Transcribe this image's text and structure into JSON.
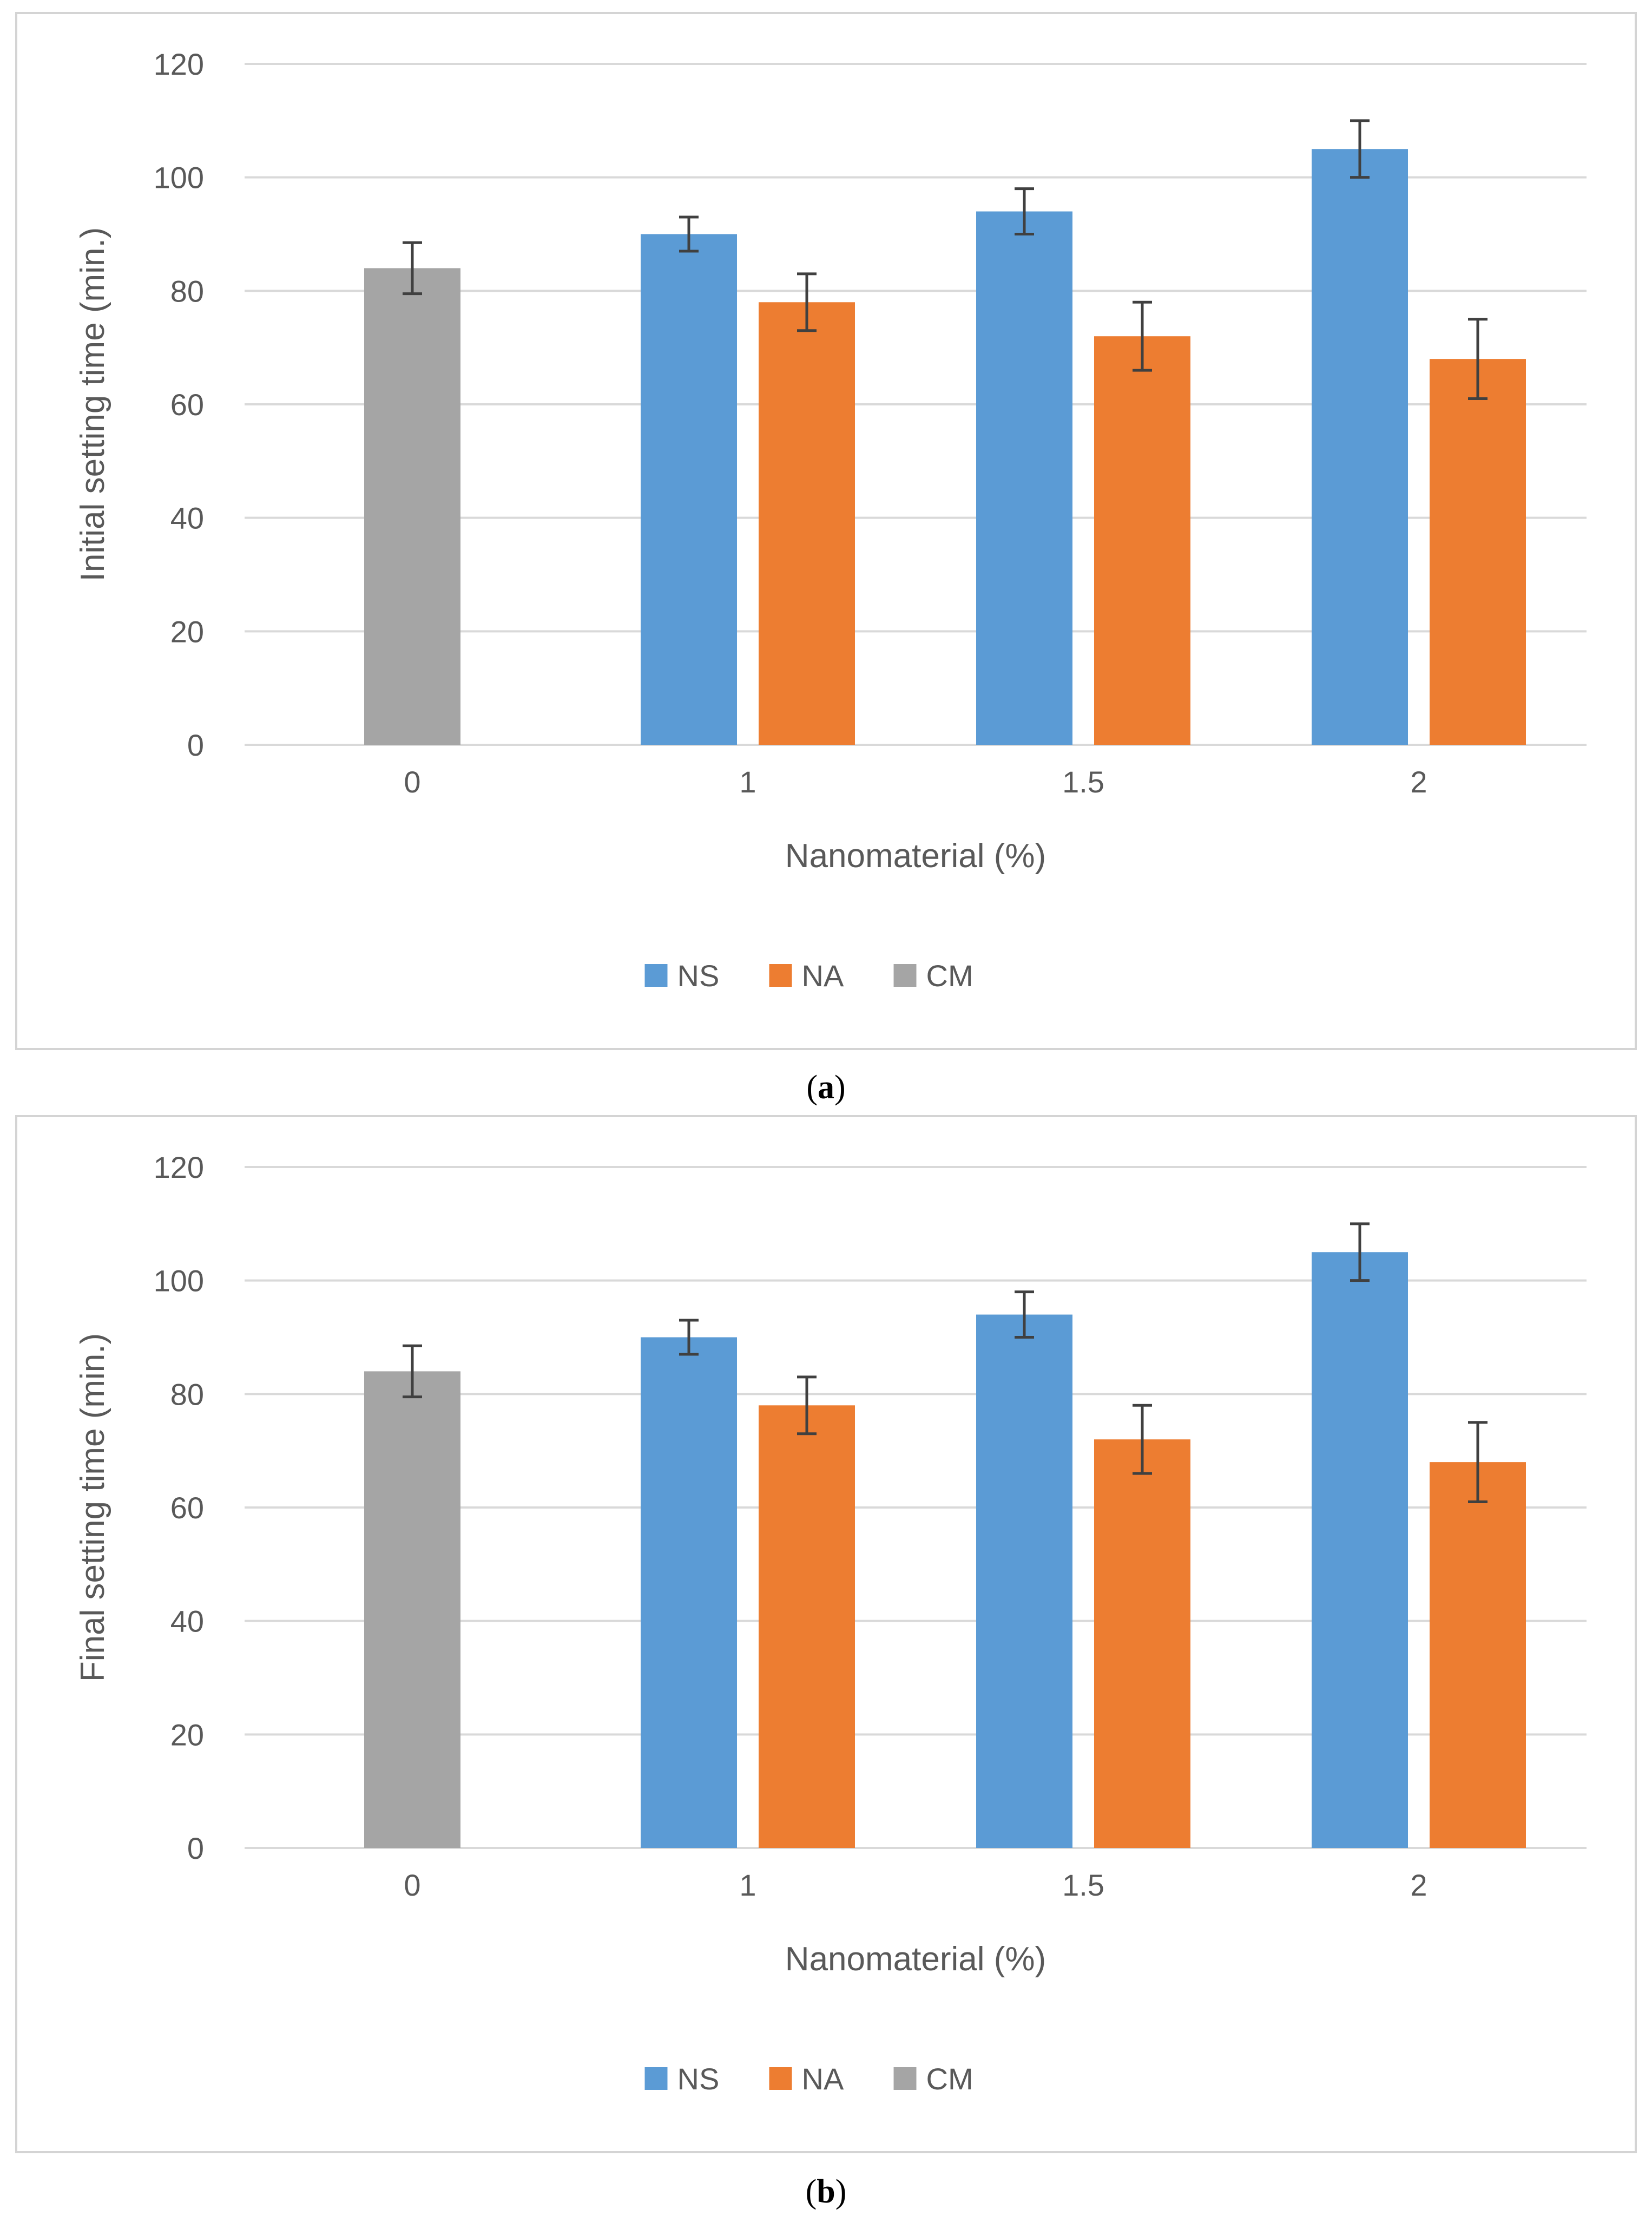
{
  "colors": {
    "NS": "#5b9bd5",
    "NA": "#ed7d31",
    "CM": "#a5a5a5",
    "grid": "#d9d9d9",
    "text": "#595959",
    "error_bar": "#404040"
  },
  "chart_data": [
    {
      "type": "bar",
      "panel": "a",
      "caption_letter": "a",
      "title": "",
      "xlabel": "Nanomaterial (%)",
      "ylabel": "Initial setting time (min.)",
      "ylim": [
        0,
        120
      ],
      "yticks": [
        "0",
        "20",
        "40",
        "60",
        "80",
        "100",
        "120"
      ],
      "grid": true,
      "legend_position": "bottom",
      "categories": [
        "0",
        "1",
        "1.5",
        "2"
      ],
      "series": [
        {
          "name": "NS",
          "values": [
            null,
            90,
            94,
            105
          ],
          "errors": [
            null,
            3,
            4,
            5
          ]
        },
        {
          "name": "NA",
          "values": [
            null,
            78,
            72,
            68
          ],
          "errors": [
            null,
            5,
            6,
            7
          ]
        },
        {
          "name": "CM",
          "values": [
            84,
            null,
            null,
            null
          ],
          "errors": [
            4.5,
            null,
            null,
            null
          ]
        }
      ]
    },
    {
      "type": "bar",
      "panel": "b",
      "caption_letter": "b",
      "title": "",
      "xlabel": "Nanomaterial (%)",
      "ylabel": "Final setting time (min.)",
      "ylim": [
        0,
        120
      ],
      "yticks": [
        "0",
        "20",
        "40",
        "60",
        "80",
        "100",
        "120"
      ],
      "grid": true,
      "legend_position": "bottom",
      "categories": [
        "0",
        "1",
        "1.5",
        "2"
      ],
      "series": [
        {
          "name": "NS",
          "values": [
            null,
            90,
            94,
            105
          ],
          "errors": [
            null,
            3,
            4,
            5
          ]
        },
        {
          "name": "NA",
          "values": [
            null,
            78,
            72,
            68
          ],
          "errors": [
            null,
            5,
            6,
            7
          ]
        },
        {
          "name": "CM",
          "values": [
            84,
            null,
            null,
            null
          ],
          "errors": [
            4.5,
            null,
            null,
            null
          ]
        }
      ]
    }
  ]
}
